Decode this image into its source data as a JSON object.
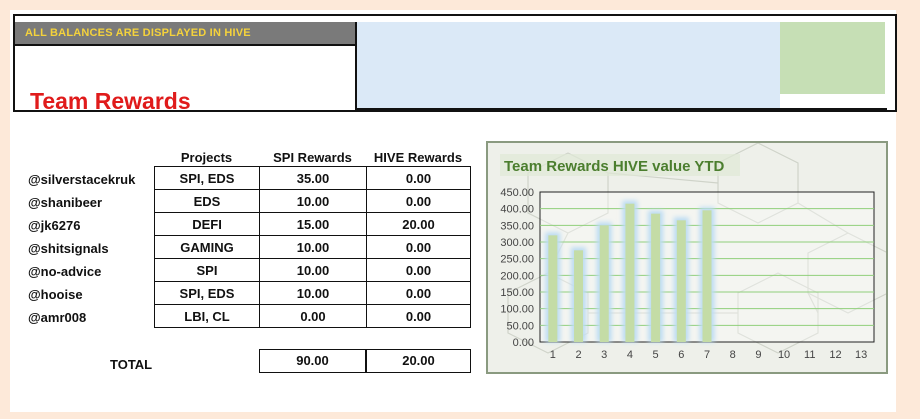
{
  "banner": {
    "note": "ALL BALANCES ARE DISPLAYED IN HIVE"
  },
  "title": "Team Rewards",
  "table": {
    "headers": {
      "projects": "Projects",
      "spi": "SPI Rewards",
      "hive": "HIVE Rewards"
    },
    "rows": [
      {
        "user": "@silverstacekruk",
        "projects": "SPI, EDS",
        "spi": "35.00",
        "hive": "0.00"
      },
      {
        "user": "@shanibeer",
        "projects": "EDS",
        "spi": "10.00",
        "hive": "0.00"
      },
      {
        "user": "@jk6276",
        "projects": "DEFI",
        "spi": "15.00",
        "hive": "20.00"
      },
      {
        "user": "@shitsignals",
        "projects": "GAMING",
        "spi": "10.00",
        "hive": "0.00"
      },
      {
        "user": "@no-advice",
        "projects": "SPI",
        "spi": "10.00",
        "hive": "0.00"
      },
      {
        "user": "@hooise",
        "projects": "SPI, EDS",
        "spi": "10.00",
        "hive": "0.00"
      },
      {
        "user": "@amr008",
        "projects": "LBI, CL",
        "spi": "0.00",
        "hive": "0.00"
      }
    ],
    "total": {
      "label": "TOTAL",
      "spi": "90.00",
      "hive": "20.00"
    }
  },
  "chart_data": {
    "type": "bar",
    "title": "Team Rewards HIVE value YTD",
    "categories": [
      "1",
      "2",
      "3",
      "4",
      "5",
      "6",
      "7",
      "8",
      "9",
      "10",
      "11",
      "12",
      "13"
    ],
    "values": [
      320,
      275,
      350,
      415,
      385,
      365,
      395,
      null,
      null,
      null,
      null,
      null,
      null
    ],
    "ylim": [
      0,
      450
    ],
    "yticks": [
      "0.00",
      "50.00",
      "100.00",
      "150.00",
      "200.00",
      "250.00",
      "300.00",
      "350.00",
      "400.00",
      "450.00"
    ],
    "grid": true,
    "bar_color": "#c4dca6",
    "bar_glow": "#bcdcf3"
  }
}
